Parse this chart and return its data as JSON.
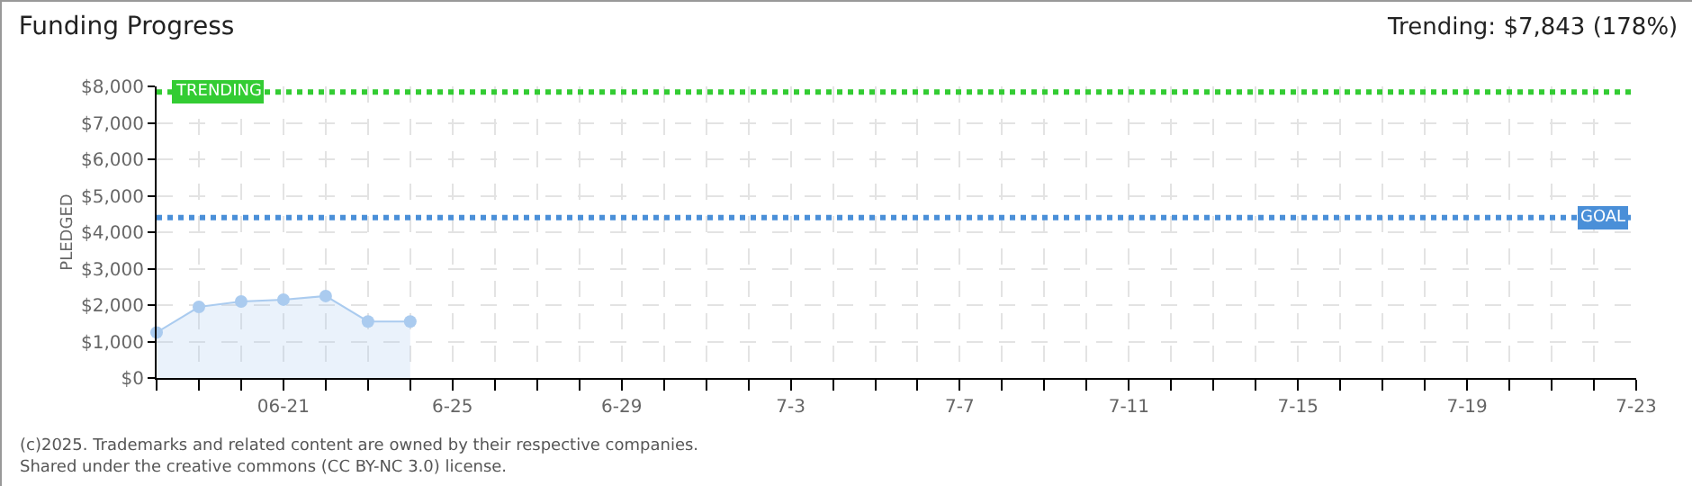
{
  "chart_data": {
    "type": "area",
    "title": "Funding Progress",
    "ylabel": "PLEDGED",
    "annotations": [
      "Trending: $7,843 (178%)",
      "(c)2025. Trademarks and related content are owned by their respective companies.",
      "Shared under the creative commons (CC BY-NC 3.0) license."
    ],
    "x": [
      "--06-18",
      "--06-19",
      "--06-20",
      "--06-21",
      "--06-22",
      "--06-23",
      "--06-24"
    ],
    "series": [
      {
        "color": "#aacbef",
        "values": [
          1250,
          1950,
          2100,
          2150,
          2250,
          1550,
          1550
        ]
      }
    ],
    "marker": "circle",
    "grid": true,
    "xlim": [
      "--06-18",
      "--07-23"
    ],
    "xticks": [
      {
        "value": "--06-18",
        "label": null
      },
      {
        "value": "--06-19",
        "label": null
      },
      {
        "value": "--06-20",
        "label": null
      },
      {
        "value": "--06-21",
        "label": "06-21"
      },
      {
        "value": "--06-22",
        "label": null
      },
      {
        "value": "--06-23",
        "label": null
      },
      {
        "value": "--06-24",
        "label": null
      },
      {
        "value": "--06-25",
        "label": "6-25"
      },
      {
        "value": "--06-26",
        "label": null
      },
      {
        "value": "--06-27",
        "label": null
      },
      {
        "value": "--06-28",
        "label": null
      },
      {
        "value": "--06-29",
        "label": "6-29"
      },
      {
        "value": "--06-30",
        "label": null
      },
      {
        "value": "--07-01",
        "label": null
      },
      {
        "value": "--07-02",
        "label": null
      },
      {
        "value": "--07-03",
        "label": "7-3"
      },
      {
        "value": "--07-04",
        "label": null
      },
      {
        "value": "--07-05",
        "label": null
      },
      {
        "value": "--07-06",
        "label": null
      },
      {
        "value": "--07-07",
        "label": "7-7"
      },
      {
        "value": "--07-08",
        "label": null
      },
      {
        "value": "--07-09",
        "label": null
      },
      {
        "value": "--07-10",
        "label": null
      },
      {
        "value": "--07-11",
        "label": "7-11"
      },
      {
        "value": "--07-12",
        "label": null
      },
      {
        "value": "--07-13",
        "label": null
      },
      {
        "value": "--07-14",
        "label": null
      },
      {
        "value": "--07-15",
        "label": "7-15"
      },
      {
        "value": "--07-16",
        "label": null
      },
      {
        "value": "--07-17",
        "label": null
      },
      {
        "value": "--07-18",
        "label": null
      },
      {
        "value": "--07-19",
        "label": "7-19"
      },
      {
        "value": "--07-20",
        "label": null
      },
      {
        "value": "--07-21",
        "label": null
      },
      {
        "value": "--07-22",
        "label": null
      },
      {
        "value": "--07-23",
        "label": "7-23"
      }
    ],
    "ylim": [
      0,
      8000
    ],
    "yticks": [
      {
        "value": 0,
        "label": "$0"
      },
      {
        "value": 1000,
        "label": "$1,000"
      },
      {
        "value": 2000,
        "label": "$2,000"
      },
      {
        "value": 3000,
        "label": "$3,000"
      },
      {
        "value": 4000,
        "label": "$4,000"
      },
      {
        "value": 5000,
        "label": "$5,000"
      },
      {
        "value": 6000,
        "label": "$6,000"
      },
      {
        "value": 7000,
        "label": "$7,000"
      },
      {
        "value": 8000,
        "label": "$8,000"
      }
    ],
    "ref_lines": [
      {
        "axis": "y",
        "value": 7843,
        "label": "TRENDING",
        "color": "#33cc33",
        "line_style": "dotted"
      },
      {
        "axis": "y",
        "value": 4400,
        "label": "GOAL",
        "color": "#4a8fd8",
        "line_style": "dotted"
      }
    ]
  }
}
